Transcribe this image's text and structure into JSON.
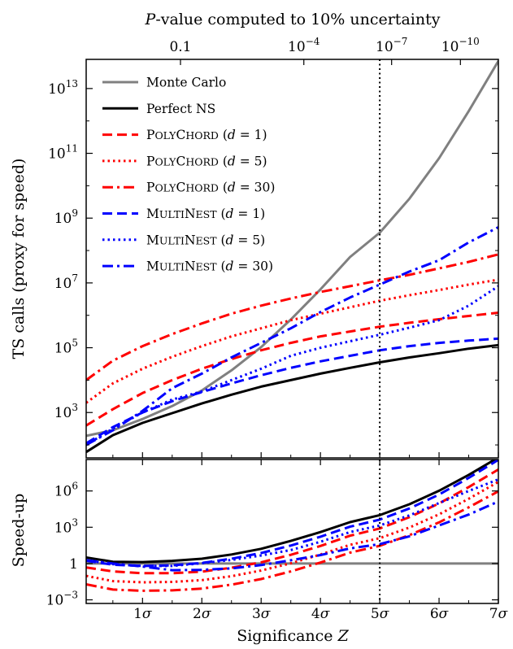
{
  "chart_data": {
    "type": "line",
    "top_axis_title": "P-value computed to 10% uncertainty",
    "top_ticks": [
      {
        "z": 1.64,
        "label": "0.1"
      },
      {
        "z": 3.72,
        "label": "10",
        "sup": "−4"
      },
      {
        "z": 5.2,
        "label": "10",
        "sup": "−7"
      },
      {
        "z": 6.36,
        "label": "10",
        "sup": "−10"
      }
    ],
    "xlabel": "Significance Z",
    "xlim": [
      0.05,
      7.0
    ],
    "x_ticks": [
      {
        "z": 1,
        "label": "1σ"
      },
      {
        "z": 2,
        "label": "2σ"
      },
      {
        "z": 3,
        "label": "3σ"
      },
      {
        "z": 4,
        "label": "4σ"
      },
      {
        "z": 5,
        "label": "5σ"
      },
      {
        "z": 6,
        "label": "6σ"
      },
      {
        "z": 7,
        "label": "7σ"
      }
    ],
    "vline_z": 5,
    "top_panel": {
      "ylabel": "TS calls (proxy for speed)",
      "ylim_log10": [
        1.6,
        13.9
      ],
      "y_ticks": [
        {
          "e": 3,
          "label": "10",
          "sup": "3"
        },
        {
          "e": 5,
          "label": "10",
          "sup": "5"
        },
        {
          "e": 7,
          "label": "10",
          "sup": "7"
        },
        {
          "e": 9,
          "label": "10",
          "sup": "9"
        },
        {
          "e": 11,
          "label": "10",
          "sup": "11"
        },
        {
          "e": 13,
          "label": "10",
          "sup": "13"
        }
      ],
      "series": [
        {
          "name": "Monte Carlo",
          "color": "#808080",
          "dash": "solid",
          "x": [
            0.05,
            0.5,
            1,
            1.5,
            2,
            2.5,
            3,
            3.5,
            4,
            4.5,
            5,
            5.5,
            6,
            6.5,
            7.0
          ],
          "log10_y": [
            2.28,
            2.45,
            2.8,
            3.2,
            3.68,
            4.3,
            5.02,
            5.87,
            6.8,
            7.8,
            8.55,
            9.6,
            10.85,
            12.3,
            13.85
          ]
        },
        {
          "name": "Perfect NS",
          "color": "#000000",
          "dash": "solid",
          "x": [
            0.05,
            0.5,
            1,
            1.5,
            2,
            2.5,
            3,
            3.5,
            4,
            4.5,
            5,
            5.5,
            6,
            6.5,
            7.0
          ],
          "log10_y": [
            1.78,
            2.3,
            2.68,
            2.98,
            3.28,
            3.55,
            3.8,
            4.0,
            4.2,
            4.38,
            4.55,
            4.7,
            4.83,
            4.97,
            5.08
          ]
        },
        {
          "name": "PolyChord (d = 1)",
          "color": "#ff0000",
          "dash": "long-dash",
          "x": [
            0.05,
            0.5,
            1,
            1.5,
            2,
            2.5,
            3,
            3.5,
            4,
            4.5,
            5,
            5.5,
            6,
            6.5,
            7.0
          ],
          "log10_y": [
            2.6,
            3.1,
            3.6,
            4.0,
            4.35,
            4.65,
            4.92,
            5.15,
            5.35,
            5.5,
            5.65,
            5.77,
            5.88,
            5.98,
            6.08
          ]
        },
        {
          "name": "PolyChord (d = 5)",
          "color": "#ff0000",
          "dash": "dotted",
          "x": [
            0.05,
            0.5,
            1,
            1.5,
            2,
            2.5,
            3,
            3.5,
            4,
            4.5,
            5,
            5.5,
            6,
            6.5,
            7.0
          ],
          "log10_y": [
            3.3,
            3.9,
            4.35,
            4.72,
            5.05,
            5.35,
            5.6,
            5.85,
            6.05,
            6.25,
            6.45,
            6.62,
            6.78,
            6.95,
            7.1
          ]
        },
        {
          "name": "PolyChord (d = 30)",
          "color": "#ff0000",
          "dash": "dash-dot",
          "x": [
            0.05,
            0.5,
            1,
            1.5,
            2,
            2.5,
            3,
            3.5,
            4,
            4.5,
            5,
            5.5,
            6,
            6.5,
            7.0
          ],
          "log10_y": [
            4.0,
            4.6,
            5.05,
            5.42,
            5.75,
            6.05,
            6.3,
            6.52,
            6.72,
            6.9,
            7.08,
            7.25,
            7.45,
            7.65,
            7.88
          ]
        },
        {
          "name": "MultiNest (d = 1)",
          "color": "#0000ff",
          "dash": "long-dash",
          "x": [
            0.05,
            0.5,
            1,
            1.5,
            2,
            2.5,
            3,
            3.5,
            4,
            4.5,
            5,
            5.5,
            6,
            6.5,
            7.0
          ],
          "log10_y": [
            2.05,
            2.55,
            3.0,
            3.35,
            3.63,
            3.9,
            4.15,
            4.38,
            4.58,
            4.75,
            4.92,
            5.05,
            5.15,
            5.22,
            5.28
          ]
        },
        {
          "name": "MultiNest (d = 5)",
          "color": "#0000ff",
          "dash": "dotted",
          "x": [
            0.05,
            0.5,
            1,
            1.5,
            2,
            2.5,
            3,
            3.5,
            4,
            4.5,
            5,
            5.5,
            6,
            6.5,
            7.0
          ],
          "log10_y": [
            2.0,
            2.5,
            3.0,
            3.4,
            3.65,
            4.0,
            4.35,
            4.75,
            5.0,
            5.2,
            5.4,
            5.62,
            5.85,
            6.3,
            6.9
          ]
        },
        {
          "name": "MultiNest (d = 30)",
          "color": "#0000ff",
          "dash": "dash-dot",
          "x": [
            0.05,
            0.5,
            1,
            1.5,
            2,
            2.5,
            3,
            3.5,
            4,
            4.5,
            5,
            5.5,
            6,
            6.5,
            7.0
          ],
          "log10_y": [
            2.0,
            2.45,
            3.05,
            3.75,
            4.2,
            4.7,
            5.15,
            5.6,
            6.1,
            6.55,
            6.95,
            7.35,
            7.7,
            8.25,
            8.72
          ]
        }
      ]
    },
    "bottom_panel": {
      "ylabel": "Speed-up",
      "ylim_log10": [
        -3.3,
        8.6
      ],
      "y_ticks": [
        {
          "e": -3,
          "label": "10",
          "sup": "−3"
        },
        {
          "e": 0,
          "label": "1",
          "sup": ""
        },
        {
          "e": 3,
          "label": "10",
          "sup": "3"
        },
        {
          "e": 6,
          "label": "10",
          "sup": "6"
        }
      ]
    },
    "legend": {
      "placement": "top-left"
    }
  }
}
